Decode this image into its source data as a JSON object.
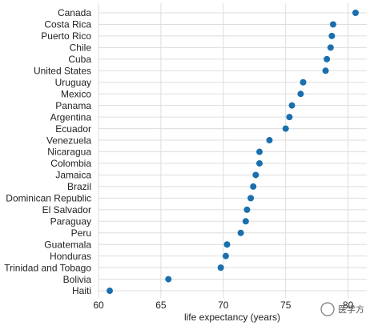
{
  "chart_data": {
    "type": "scatter",
    "categories": [
      "Canada",
      "Costa Rica",
      "Puerto Rico",
      "Chile",
      "Cuba",
      "United States",
      "Uruguay",
      "Mexico",
      "Panama",
      "Argentina",
      "Ecuador",
      "Venezuela",
      "Nicaragua",
      "Colombia",
      "Jamaica",
      "Brazil",
      "Dominican Republic",
      "El Salvador",
      "Paraguay",
      "Peru",
      "Guatemala",
      "Honduras",
      "Trinidad and Tobago",
      "Bolivia",
      "Haiti"
    ],
    "values": [
      80.6,
      78.8,
      78.7,
      78.6,
      78.3,
      78.2,
      76.4,
      76.2,
      75.5,
      75.3,
      75.0,
      73.7,
      72.9,
      72.9,
      72.6,
      72.4,
      72.2,
      71.9,
      71.8,
      71.4,
      70.3,
      70.2,
      69.8,
      65.6,
      60.9
    ],
    "xlabel": "life expectancy (years)",
    "ylabel": "",
    "xlim": [
      60,
      81.5
    ],
    "xticks": [
      60,
      65,
      70,
      75,
      80
    ],
    "grid": true,
    "point_color": "#1a6fad"
  },
  "watermark": {
    "text": "医学方"
  }
}
